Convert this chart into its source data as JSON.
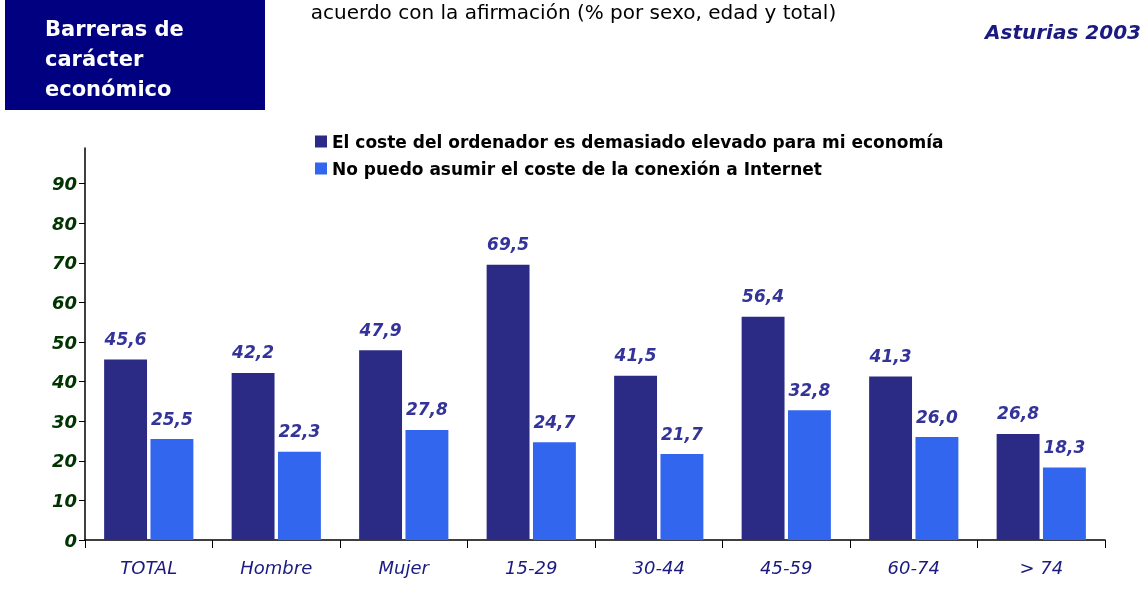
{
  "chart_data": {
    "type": "bar",
    "title": "Barreras de carácter económico",
    "subtitle": "acuerdo con la afirmación (% por sexo, edad y total)",
    "annotations": [
      "Asturias 2003"
    ],
    "categories": [
      "TOTAL",
      "Hombre",
      "Mujer",
      "15-29",
      "30-44",
      "45-59",
      "60-74",
      "> 74"
    ],
    "series": [
      {
        "name": "El coste del ordenador es demasiado elevado para mi economía",
        "color": "#2b2b86",
        "values": [
          45.6,
          42.2,
          47.9,
          69.5,
          41.5,
          56.4,
          41.3,
          26.8
        ],
        "value_labels": [
          "45,6",
          "42,2",
          "47,9",
          "69,5",
          "41,5",
          "56,4",
          "41,3",
          "26,8"
        ]
      },
      {
        "name": "No puedo asumir el coste de la conexión a Internet",
        "color": "#3366ee",
        "values": [
          25.5,
          22.3,
          27.8,
          24.7,
          21.7,
          32.8,
          26.0,
          18.3
        ],
        "value_labels": [
          "25,5",
          "22,3",
          "27,8",
          "24,7",
          "21,7",
          "32,8",
          "26,0",
          "18,3"
        ]
      }
    ],
    "ylim": [
      0,
      99
    ],
    "yticks": [
      0,
      10,
      20,
      30,
      40,
      50,
      60,
      70,
      80,
      90
    ],
    "grid": false,
    "legend": "top"
  }
}
